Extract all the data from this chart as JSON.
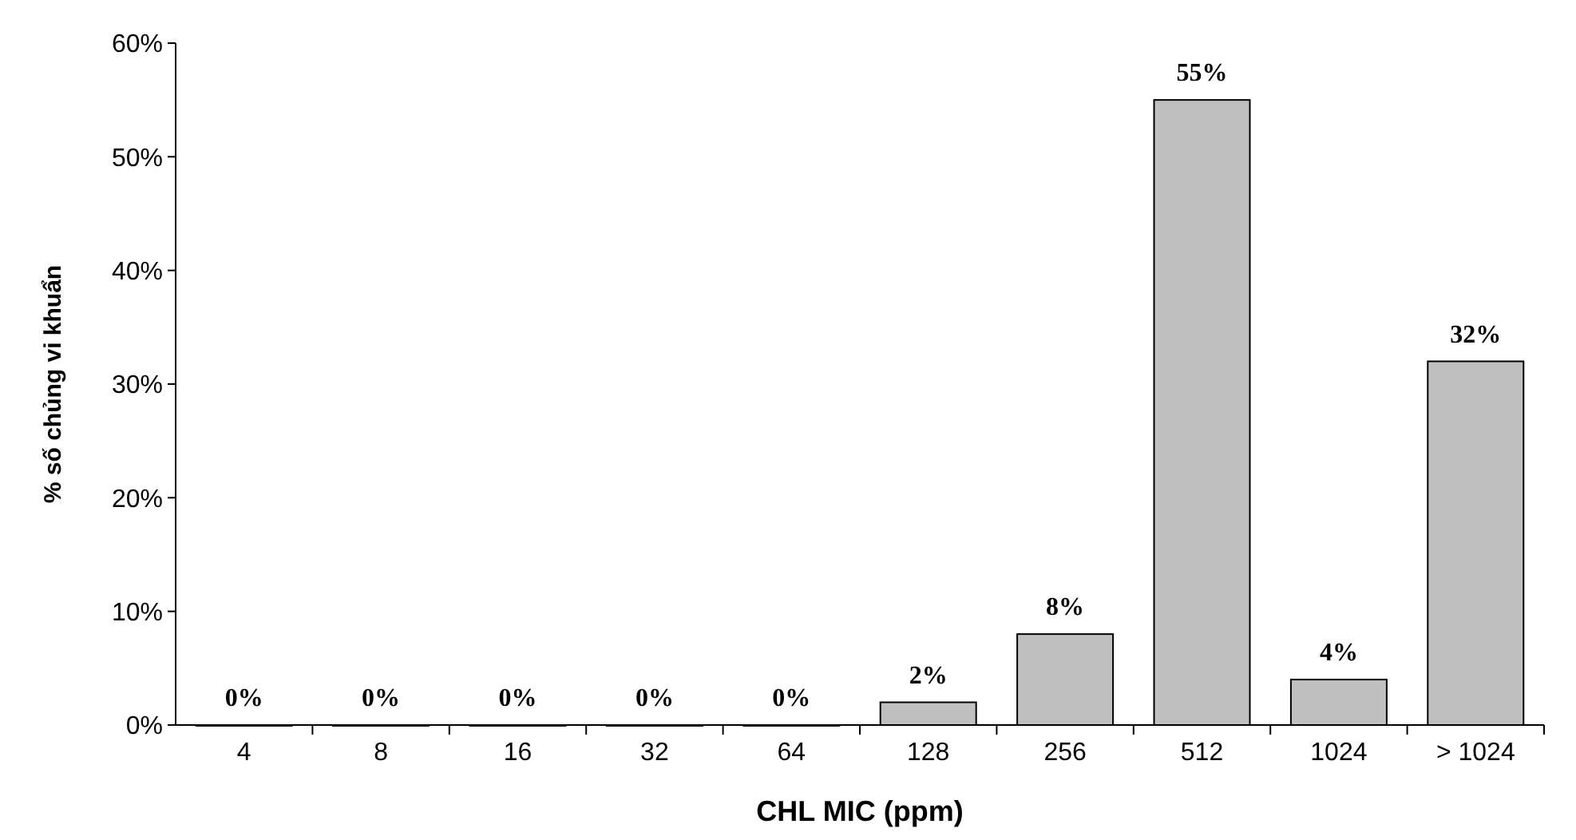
{
  "chart_data": {
    "type": "bar",
    "xlabel": "CHL MIC (ppm)",
    "ylabel": "% số chủng vi khuẩn",
    "categories": [
      "4",
      "8",
      "16",
      "32",
      "64",
      "128",
      "256",
      "512",
      "1024",
      "> 1024"
    ],
    "values": [
      0,
      0,
      0,
      0,
      0,
      2,
      8,
      55,
      4,
      32
    ],
    "value_labels": [
      "0%",
      "0%",
      "0%",
      "0%",
      "0%",
      "2%",
      "8%",
      "55%",
      "4%",
      "32%"
    ],
    "color": "#c0c0c0",
    "ylim": [
      0,
      60
    ],
    "yticks": [
      {
        "value": 0,
        "label": "0%"
      },
      {
        "value": 10,
        "label": "10%"
      },
      {
        "value": 20,
        "label": "20%"
      },
      {
        "value": 30,
        "label": "30%"
      },
      {
        "value": 40,
        "label": "40%"
      },
      {
        "value": 50,
        "label": "50%"
      },
      {
        "value": 60,
        "label": "60%"
      }
    ],
    "grid": false
  }
}
